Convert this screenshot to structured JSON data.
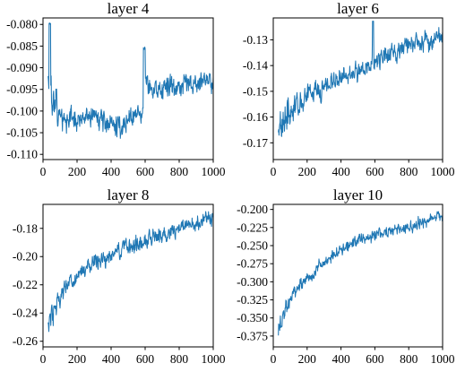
{
  "colors": {
    "series": "#1f77b4",
    "axes": "#000000"
  },
  "chart_data": [
    {
      "type": "line",
      "title": "layer 4",
      "xlim": [
        0,
        1000
      ],
      "ylim": [
        -0.1112,
        -0.0785
      ],
      "xticks": [
        0,
        200,
        400,
        600,
        800,
        1000
      ],
      "yticks": [
        -0.11,
        -0.105,
        -0.1,
        -0.095,
        -0.09,
        -0.085,
        -0.08
      ],
      "ytick_labels": [
        "-0.110",
        "-0.105",
        "-0.100",
        "-0.095",
        "-0.090",
        "-0.085",
        "-0.080"
      ],
      "grid": false,
      "x": [
        30,
        60,
        100,
        150,
        200,
        250,
        300,
        350,
        400,
        450,
        500,
        550,
        580,
        600,
        650,
        700,
        750,
        800,
        850,
        900,
        950,
        1000
      ],
      "y": [
        -0.092,
        -0.097,
        -0.101,
        -0.102,
        -0.1025,
        -0.1018,
        -0.101,
        -0.1015,
        -0.1035,
        -0.1038,
        -0.102,
        -0.1005,
        -0.101,
        -0.093,
        -0.096,
        -0.095,
        -0.0945,
        -0.094,
        -0.0935,
        -0.094,
        -0.093,
        -0.0925
      ],
      "noise": 0.0028
    },
    {
      "type": "line",
      "title": "layer 6",
      "xlim": [
        0,
        1000
      ],
      "ylim": [
        -0.1765,
        -0.1215
      ],
      "xticks": [
        0,
        200,
        400,
        600,
        800,
        1000
      ],
      "yticks": [
        -0.17,
        -0.16,
        -0.15,
        -0.14,
        -0.13
      ],
      "ytick_labels": [
        "-0.17",
        "-0.16",
        "-0.15",
        "-0.14",
        "-0.13"
      ],
      "grid": false,
      "x": [
        30,
        60,
        100,
        150,
        200,
        300,
        400,
        500,
        600,
        700,
        800,
        900,
        1000
      ],
      "y": [
        -0.163,
        -0.16,
        -0.158,
        -0.155,
        -0.152,
        -0.148,
        -0.145,
        -0.142,
        -0.139,
        -0.135,
        -0.132,
        -0.13,
        -0.128
      ],
      "noise": 0.0045
    },
    {
      "type": "line",
      "title": "layer 8",
      "xlim": [
        0,
        1000
      ],
      "ylim": [
        -0.264,
        -0.163
      ],
      "xticks": [
        0,
        200,
        400,
        600,
        800,
        1000
      ],
      "yticks": [
        -0.26,
        -0.24,
        -0.22,
        -0.2,
        -0.18
      ],
      "ytick_labels": [
        "-0.26",
        "-0.24",
        "-0.22",
        "-0.20",
        "-0.18"
      ],
      "grid": false,
      "x": [
        30,
        60,
        100,
        150,
        200,
        300,
        400,
        500,
        600,
        700,
        800,
        900,
        1000
      ],
      "y": [
        -0.248,
        -0.237,
        -0.228,
        -0.22,
        -0.214,
        -0.205,
        -0.199,
        -0.193,
        -0.188,
        -0.184,
        -0.18,
        -0.177,
        -0.172
      ],
      "noise": 0.0065
    },
    {
      "type": "line",
      "title": "layer 10",
      "xlim": [
        0,
        1000
      ],
      "ylim": [
        -0.39,
        -0.193
      ],
      "xticks": [
        0,
        200,
        400,
        600,
        800,
        1000
      ],
      "yticks": [
        -0.375,
        -0.35,
        -0.325,
        -0.3,
        -0.275,
        -0.25,
        -0.225,
        -0.2
      ],
      "ytick_labels": [
        "-0.375",
        "-0.350",
        "-0.325",
        "-0.300",
        "-0.275",
        "-0.250",
        "-0.225",
        "-0.200"
      ],
      "grid": false,
      "x": [
        30,
        60,
        100,
        150,
        200,
        250,
        300,
        400,
        500,
        600,
        700,
        800,
        900,
        1000
      ],
      "y": [
        -0.37,
        -0.345,
        -0.325,
        -0.308,
        -0.295,
        -0.285,
        -0.272,
        -0.255,
        -0.242,
        -0.235,
        -0.229,
        -0.224,
        -0.217,
        -0.207
      ],
      "noise": 0.009
    }
  ]
}
